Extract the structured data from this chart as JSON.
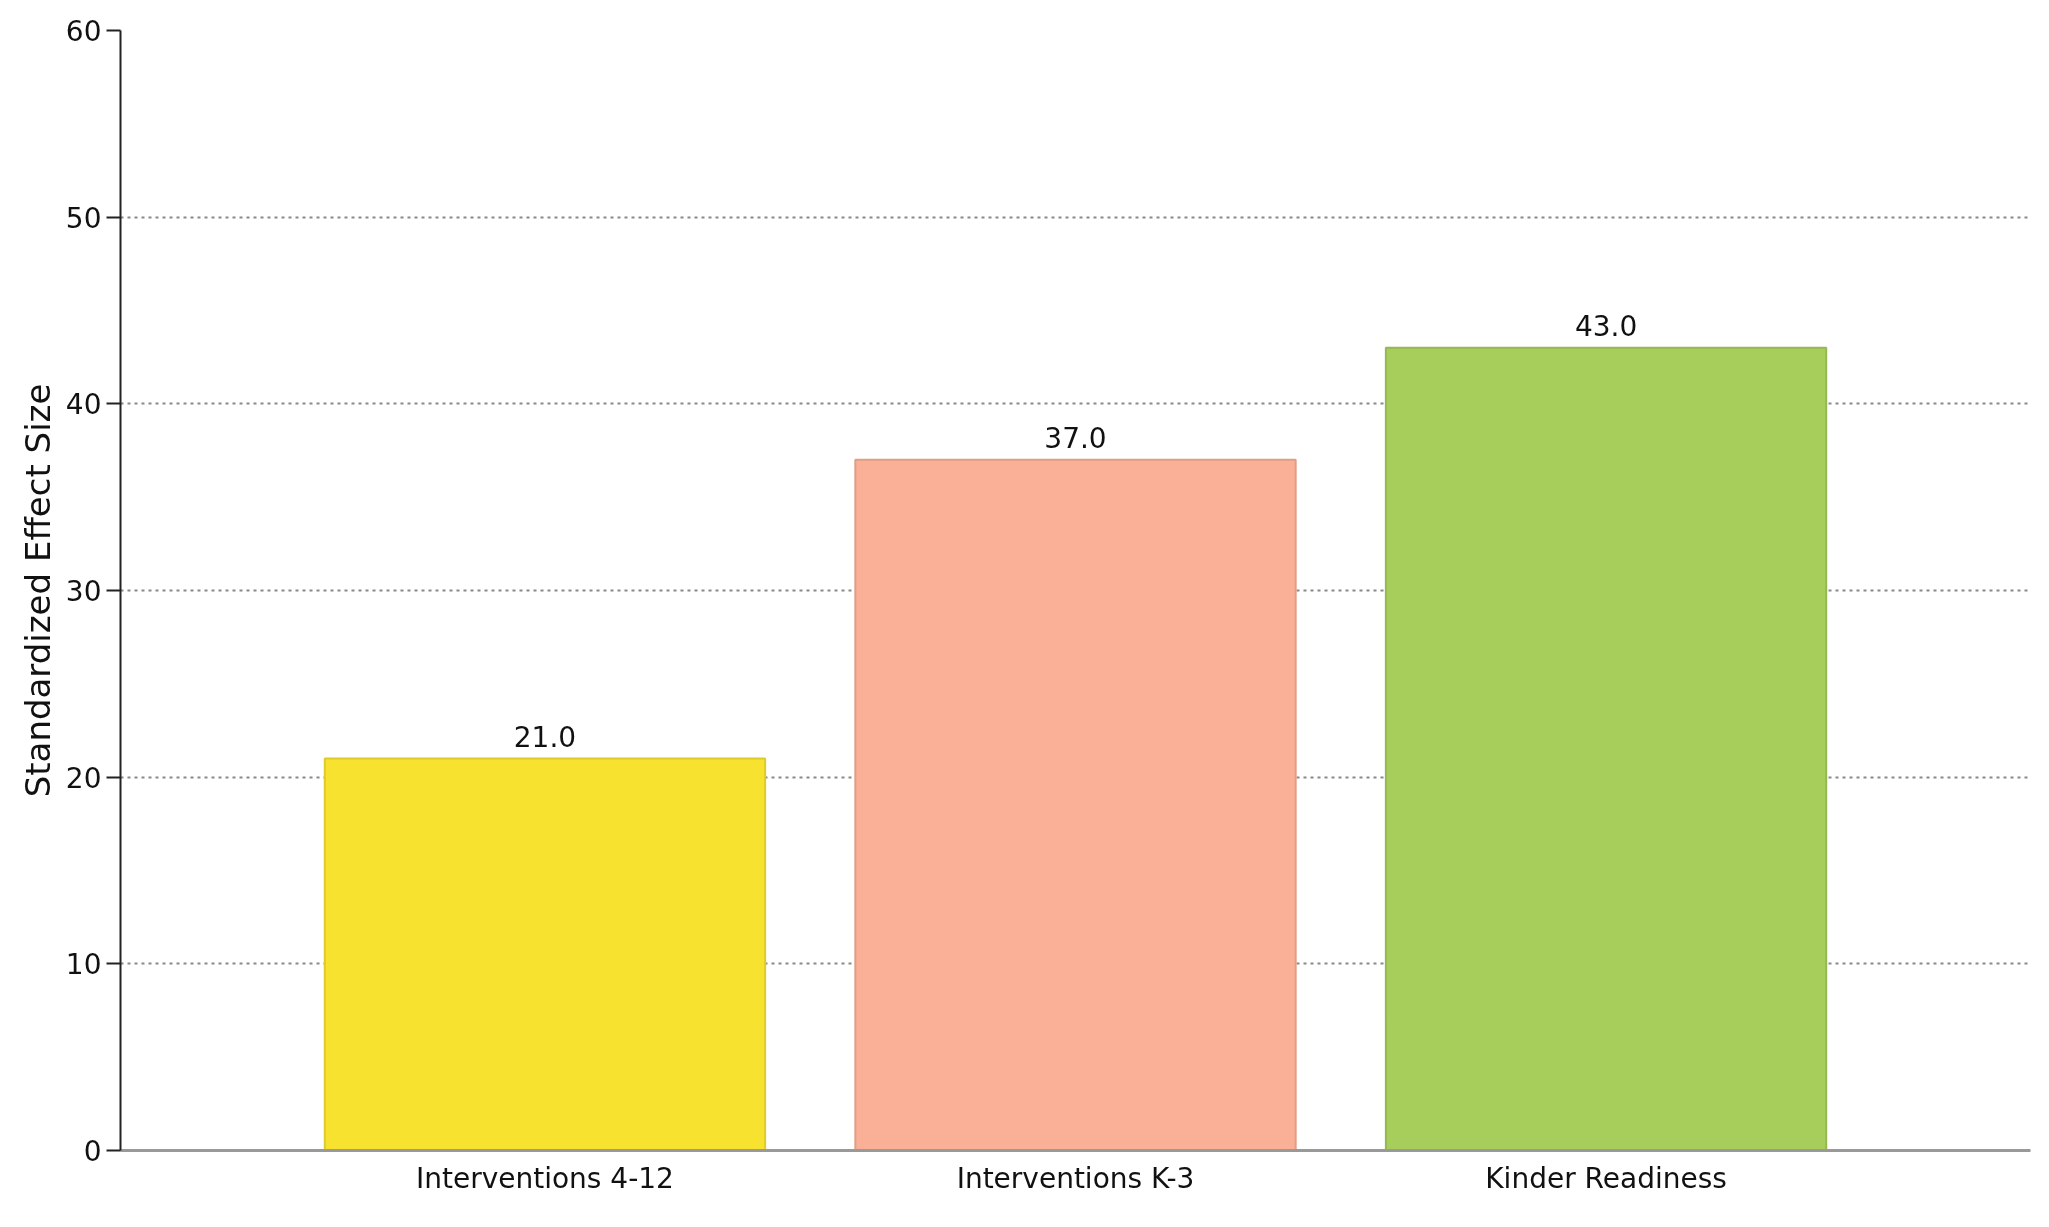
{
  "chart_data": {
    "type": "bar",
    "ylabel": "Standardized Effect Size",
    "categories": [
      "Interventions 4-12",
      "Interventions K-3",
      "Kinder Readiness"
    ],
    "values": [
      21.0,
      37.0,
      43.0
    ],
    "colors": [
      "#f7e22f",
      "#f9b096",
      "#a7cd5a"
    ],
    "value_labels": [
      "21.0",
      "37.0",
      "43.0"
    ],
    "ylim": [
      0,
      60
    ],
    "yticks": [
      0,
      10,
      20,
      30,
      40,
      50,
      60
    ],
    "grid": "y"
  }
}
